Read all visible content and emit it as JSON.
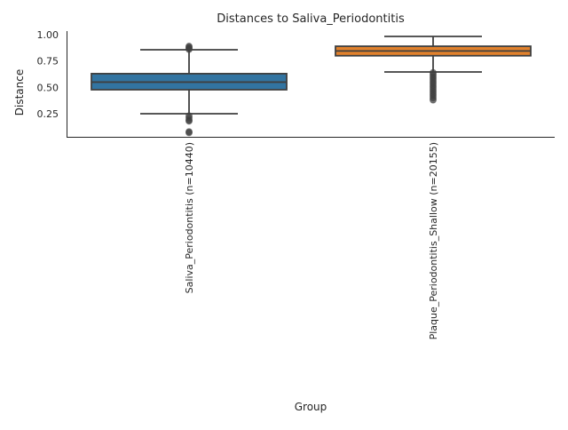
{
  "chart_data": {
    "type": "box",
    "title": "Distances to Saliva_Periodontitis",
    "xlabel": "Group",
    "ylabel": "Distance",
    "ylim": [
      0.03,
      1.03
    ],
    "yticks": [
      "0.25",
      "0.50",
      "0.75",
      "1.00"
    ],
    "ytick_values": [
      0.25,
      0.5,
      0.75,
      1.0
    ],
    "grid": false,
    "categories": [
      "Saliva_Periodontitis (n=10440)",
      "Plaque_Periodontitis_Shallow (n=20155)"
    ],
    "boxes": [
      {
        "q1": 0.478,
        "median": 0.55,
        "q3": 0.63,
        "whisker_low": 0.25,
        "whisker_high": 0.857,
        "color": "#3274a1",
        "outliers": [
          0.86,
          0.87,
          0.88,
          0.89,
          0.23,
          0.21,
          0.19,
          0.18,
          0.08,
          0.07
        ]
      },
      {
        "q1": 0.8,
        "median": 0.845,
        "q3": 0.89,
        "whisker_low": 0.646,
        "whisker_high": 0.983,
        "color": "#e1812c",
        "outliers": [
          0.64,
          0.62,
          0.6,
          0.58,
          0.56,
          0.54,
          0.52,
          0.5,
          0.48,
          0.46,
          0.44,
          0.42,
          0.4,
          0.38
        ]
      }
    ]
  }
}
